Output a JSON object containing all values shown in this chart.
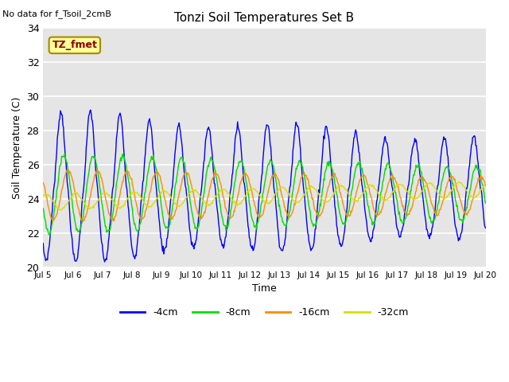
{
  "title": "Tonzi Soil Temperatures Set B",
  "xlabel": "Time",
  "ylabel": "Soil Temperature (C)",
  "no_data_label": "No data for f_Tsoil_2cmB",
  "legend_label": "TZ_fmet",
  "ylim": [
    20,
    34
  ],
  "yticks": [
    20,
    22,
    24,
    26,
    28,
    30,
    32,
    34
  ],
  "xlim": [
    5,
    20
  ],
  "xtick_days": [
    5,
    6,
    7,
    8,
    9,
    10,
    11,
    12,
    13,
    14,
    15,
    16,
    17,
    18,
    19,
    20
  ],
  "colors": {
    "4cm": "#0000FF",
    "8cm": "#00DD00",
    "16cm": "#FF8C00",
    "32cm": "#DDDD00"
  },
  "labels": [
    "-4cm",
    "-8cm",
    "-16cm",
    "-32cm"
  ],
  "bg_color": "#E5E5E5"
}
